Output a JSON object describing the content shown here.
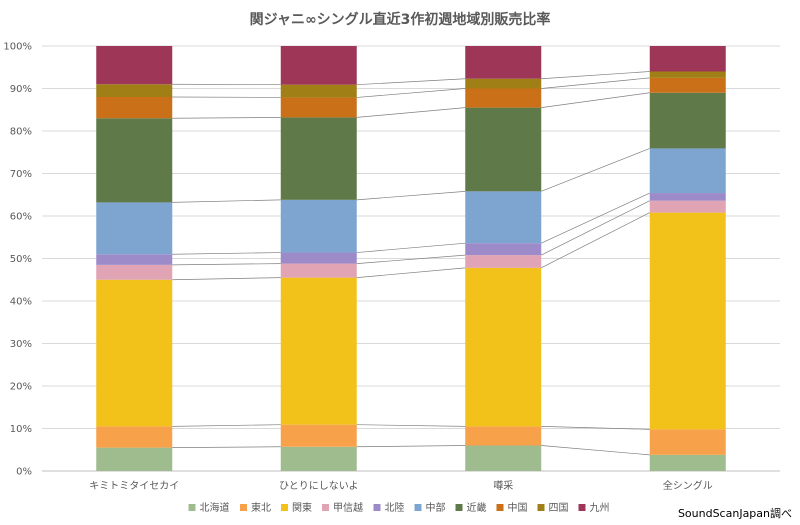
{
  "chart_data": {
    "type": "bar",
    "stacked": true,
    "percent": true,
    "title": "関ジャニ∞シングル直近3作初週地域別販売比率",
    "categories": [
      "キミトミタイセカイ",
      "ひとりにしないよ",
      "噂采",
      "全シングル"
    ],
    "ylim": [
      0,
      100
    ],
    "yticks": [
      "0%",
      "10%",
      "20%",
      "30%",
      "40%",
      "50%",
      "60%",
      "70%",
      "80%",
      "90%",
      "100%"
    ],
    "legend_position": "bottom",
    "series_connector_lines": true,
    "series": [
      {
        "name": "北海道",
        "color": "#9fbc8f",
        "values": [
          5.5,
          5.7,
          6.0,
          3.8
        ]
      },
      {
        "name": "東北",
        "color": "#f7a14a",
        "values": [
          5.0,
          5.2,
          4.5,
          6.0
        ]
      },
      {
        "name": "関東",
        "color": "#f2c21b",
        "values": [
          34.5,
          34.6,
          37.3,
          51.0
        ]
      },
      {
        "name": "甲信越",
        "color": "#e0a4b4",
        "values": [
          3.5,
          3.3,
          3.0,
          2.8
        ]
      },
      {
        "name": "北陸",
        "color": "#9d8ac9",
        "values": [
          2.5,
          2.6,
          2.8,
          1.8
        ]
      },
      {
        "name": "中部",
        "color": "#7ea4d0",
        "values": [
          12.2,
          12.4,
          12.2,
          10.5
        ]
      },
      {
        "name": "近畿",
        "color": "#5f7a48",
        "values": [
          19.8,
          19.4,
          19.7,
          13.1
        ]
      },
      {
        "name": "中国",
        "color": "#c97018",
        "values": [
          5.0,
          4.7,
          4.5,
          3.5
        ]
      },
      {
        "name": "四国",
        "color": "#a08016",
        "values": [
          3.0,
          3.0,
          2.3,
          1.5
        ]
      },
      {
        "name": "九州",
        "color": "#9e3658",
        "values": [
          9.0,
          9.1,
          7.7,
          6.0
        ]
      }
    ]
  },
  "source_note": "SoundScanJapan調べ"
}
